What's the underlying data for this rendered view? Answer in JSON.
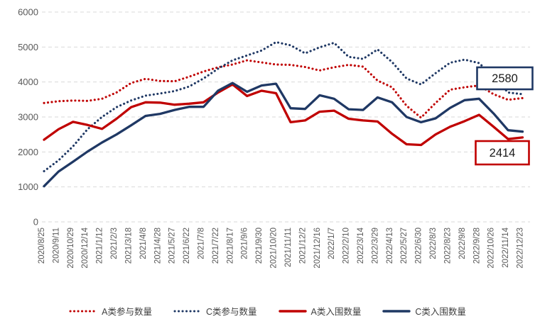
{
  "chart_data": {
    "type": "line",
    "title": "",
    "xlabel": "",
    "ylabel": "",
    "grid": "horizontal-dashed",
    "legend_position": "bottom",
    "y_axis": {
      "min": 0,
      "max": 6000,
      "tick_interval": 1000
    },
    "y_ticks": [
      0,
      1000,
      2000,
      3000,
      4000,
      5000,
      6000
    ],
    "y_tick_labels": [
      "0",
      "1000",
      "2000",
      "3000",
      "4000",
      "5000",
      "6000"
    ],
    "x_labels": [
      "2020/8/25",
      "2020/9/11",
      "2020/10/29",
      "2020/12/14",
      "2021/1/12",
      "2021/2/3",
      "2021/3/18",
      "2021/4/8",
      "2021/4/28",
      "2021/5/27",
      "2021/6/22",
      "2021/7/8",
      "2021/7/22",
      "2021/8/17",
      "2021/9/6",
      "2021/9/30",
      "2021/10/20",
      "2021/11/11",
      "2021/12/2",
      "2021/12/16",
      "2022/1/7",
      "2022/2/10",
      "2022/3/14",
      "2022/3/29",
      "2022/4/13",
      "2022/5/27",
      "2022/6/30",
      "2022/8/3",
      "2022/8/23",
      "2022/9/8",
      "2022/9/28",
      "2022/10/26",
      "2022/11/14",
      "2022/12/23"
    ],
    "series": [
      {
        "id": "a-participation",
        "name": "A类参与数量",
        "color": "#c00000",
        "style": "dotted",
        "values": [
          3400,
          3450,
          3470,
          3460,
          3520,
          3700,
          3970,
          4090,
          4030,
          4020,
          4150,
          4300,
          4420,
          4500,
          4620,
          4560,
          4500,
          4490,
          4430,
          4330,
          4420,
          4490,
          4440,
          4040,
          3850,
          3320,
          2980,
          3400,
          3780,
          3850,
          3900,
          3650,
          3490,
          3540
        ]
      },
      {
        "id": "c-participation",
        "name": "C类参与数量",
        "color": "#1f3864",
        "style": "dotted",
        "values": [
          1450,
          1760,
          2160,
          2650,
          3000,
          3280,
          3470,
          3610,
          3670,
          3740,
          3870,
          4100,
          4380,
          4620,
          4760,
          4900,
          5140,
          5050,
          4820,
          4990,
          5120,
          4720,
          4660,
          4930,
          4570,
          4100,
          3930,
          4250,
          4550,
          4640,
          4540,
          4150,
          3700,
          3650
        ]
      },
      {
        "id": "a-shortlist",
        "name": "A类入围数量",
        "color": "#c00000",
        "style": "solid",
        "values": [
          2350,
          2650,
          2860,
          2770,
          2660,
          2950,
          3280,
          3420,
          3410,
          3350,
          3380,
          3420,
          3700,
          3930,
          3600,
          3750,
          3680,
          2850,
          2900,
          3150,
          3180,
          2950,
          2900,
          2870,
          2520,
          2220,
          2200,
          2500,
          2720,
          2880,
          3060,
          2720,
          2370,
          2414
        ]
      },
      {
        "id": "c-shortlist",
        "name": "C类入围数量",
        "color": "#1f3864",
        "style": "solid",
        "values": [
          1020,
          1440,
          1720,
          2010,
          2270,
          2500,
          2760,
          3030,
          3090,
          3200,
          3290,
          3290,
          3750,
          3970,
          3720,
          3900,
          3950,
          3250,
          3230,
          3620,
          3520,
          3220,
          3200,
          3560,
          3420,
          3000,
          2850,
          2960,
          3260,
          3480,
          3520,
          3100,
          2620,
          2580
        ]
      }
    ],
    "annotations": [
      {
        "text": "2580",
        "value": 2580,
        "series": "C类入围数量",
        "x_label": "2022/12/23",
        "color": "#1f3864"
      },
      {
        "text": "2414",
        "value": 2414,
        "series": "A类入围数量",
        "x_label": "2022/12/23",
        "color": "#c00000"
      }
    ]
  },
  "colors": {
    "red": "#c00000",
    "navy": "#1f3864",
    "gridline": "#d9d9d9",
    "axis_text": "#595959",
    "legend_text": "#404040",
    "annotation_text": "#1a1a1a",
    "background": "#ffffff"
  }
}
